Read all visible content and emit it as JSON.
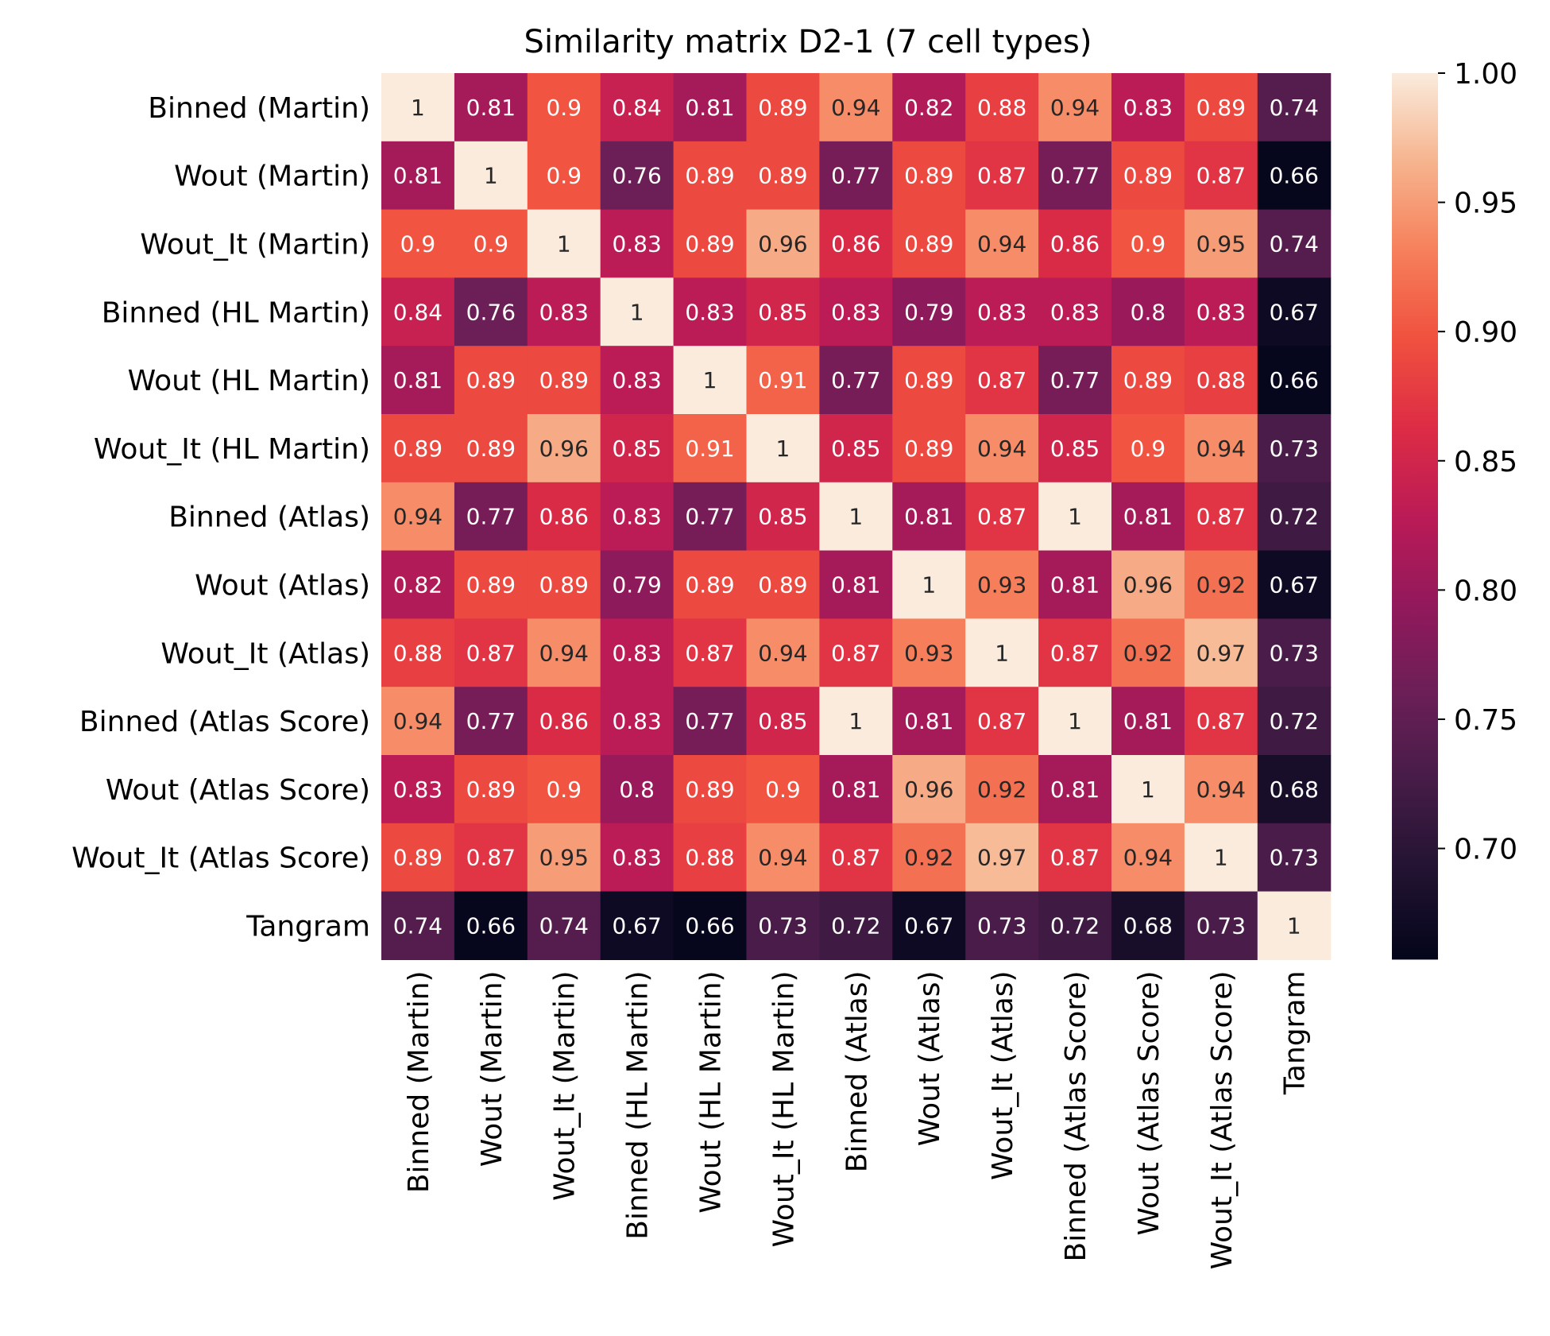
{
  "chart_data": {
    "type": "heatmap",
    "title": "Similarity matrix D2-1 (7 cell types)",
    "xlabel": "",
    "ylabel": "",
    "rows": [
      "Binned (Martin)",
      "Wout (Martin)",
      "Wout_It (Martin)",
      "Binned (HL Martin)",
      "Wout (HL Martin)",
      "Wout_It (HL Martin)",
      "Binned (Atlas)",
      "Wout (Atlas)",
      "Wout_It (Atlas)",
      "Binned (Atlas Score)",
      "Wout (Atlas Score)",
      "Wout_It (Atlas Score)",
      "Tangram"
    ],
    "columns": [
      "Binned (Martin)",
      "Wout (Martin)",
      "Wout_It (Martin)",
      "Binned (HL Martin)",
      "Wout (HL Martin)",
      "Wout_It (HL Martin)",
      "Binned (Atlas)",
      "Wout (Atlas)",
      "Wout_It (Atlas)",
      "Binned (Atlas Score)",
      "Wout (Atlas Score)",
      "Wout_It (Atlas Score)",
      "Tangram"
    ],
    "values": [
      [
        1,
        0.81,
        0.9,
        0.84,
        0.81,
        0.89,
        0.94,
        0.82,
        0.88,
        0.94,
        0.83,
        0.89,
        0.74
      ],
      [
        0.81,
        1,
        0.9,
        0.76,
        0.89,
        0.89,
        0.77,
        0.89,
        0.87,
        0.77,
        0.89,
        0.87,
        0.66
      ],
      [
        0.9,
        0.9,
        1,
        0.83,
        0.89,
        0.96,
        0.86,
        0.89,
        0.94,
        0.86,
        0.9,
        0.95,
        0.74
      ],
      [
        0.84,
        0.76,
        0.83,
        1,
        0.83,
        0.85,
        0.83,
        0.79,
        0.83,
        0.83,
        0.8,
        0.83,
        0.67
      ],
      [
        0.81,
        0.89,
        0.89,
        0.83,
        1,
        0.91,
        0.77,
        0.89,
        0.87,
        0.77,
        0.89,
        0.88,
        0.66
      ],
      [
        0.89,
        0.89,
        0.96,
        0.85,
        0.91,
        1,
        0.85,
        0.89,
        0.94,
        0.85,
        0.9,
        0.94,
        0.73
      ],
      [
        0.94,
        0.77,
        0.86,
        0.83,
        0.77,
        0.85,
        1,
        0.81,
        0.87,
        1,
        0.81,
        0.87,
        0.72
      ],
      [
        0.82,
        0.89,
        0.89,
        0.79,
        0.89,
        0.89,
        0.81,
        1,
        0.93,
        0.81,
        0.96,
        0.92,
        0.67
      ],
      [
        0.88,
        0.87,
        0.94,
        0.83,
        0.87,
        0.94,
        0.87,
        0.93,
        1,
        0.87,
        0.92,
        0.97,
        0.73
      ],
      [
        0.94,
        0.77,
        0.86,
        0.83,
        0.77,
        0.85,
        1,
        0.81,
        0.87,
        1,
        0.81,
        0.87,
        0.72
      ],
      [
        0.83,
        0.89,
        0.9,
        0.8,
        0.89,
        0.9,
        0.81,
        0.96,
        0.92,
        0.81,
        1,
        0.94,
        0.68
      ],
      [
        0.89,
        0.87,
        0.95,
        0.83,
        0.88,
        0.94,
        0.87,
        0.92,
        0.97,
        0.87,
        0.94,
        1,
        0.73
      ],
      [
        0.74,
        0.66,
        0.74,
        0.67,
        0.66,
        0.73,
        0.72,
        0.67,
        0.73,
        0.72,
        0.68,
        0.73,
        1
      ]
    ],
    "annotated": true,
    "colormap": "rocket",
    "colorbar": {
      "min": 0.657,
      "max": 1.0,
      "ticks": [
        0.7,
        0.75,
        0.8,
        0.85,
        0.9,
        0.95,
        1.0
      ],
      "tick_labels": [
        "0.70",
        "0.75",
        "0.80",
        "0.85",
        "0.90",
        "0.95",
        "1.00"
      ],
      "placement": "right"
    },
    "colormap_stops": [
      [
        0.0,
        "#03051a"
      ],
      [
        0.1,
        "#221331"
      ],
      [
        0.2,
        "#451c47"
      ],
      [
        0.3,
        "#6b1f56"
      ],
      [
        0.4,
        "#92195c"
      ],
      [
        0.5,
        "#bb1b56"
      ],
      [
        0.6,
        "#dd2c45"
      ],
      [
        0.7,
        "#f0513f"
      ],
      [
        0.8,
        "#f6805b"
      ],
      [
        0.9,
        "#f6b48e"
      ],
      [
        1.0,
        "#faebdd"
      ]
    ]
  }
}
